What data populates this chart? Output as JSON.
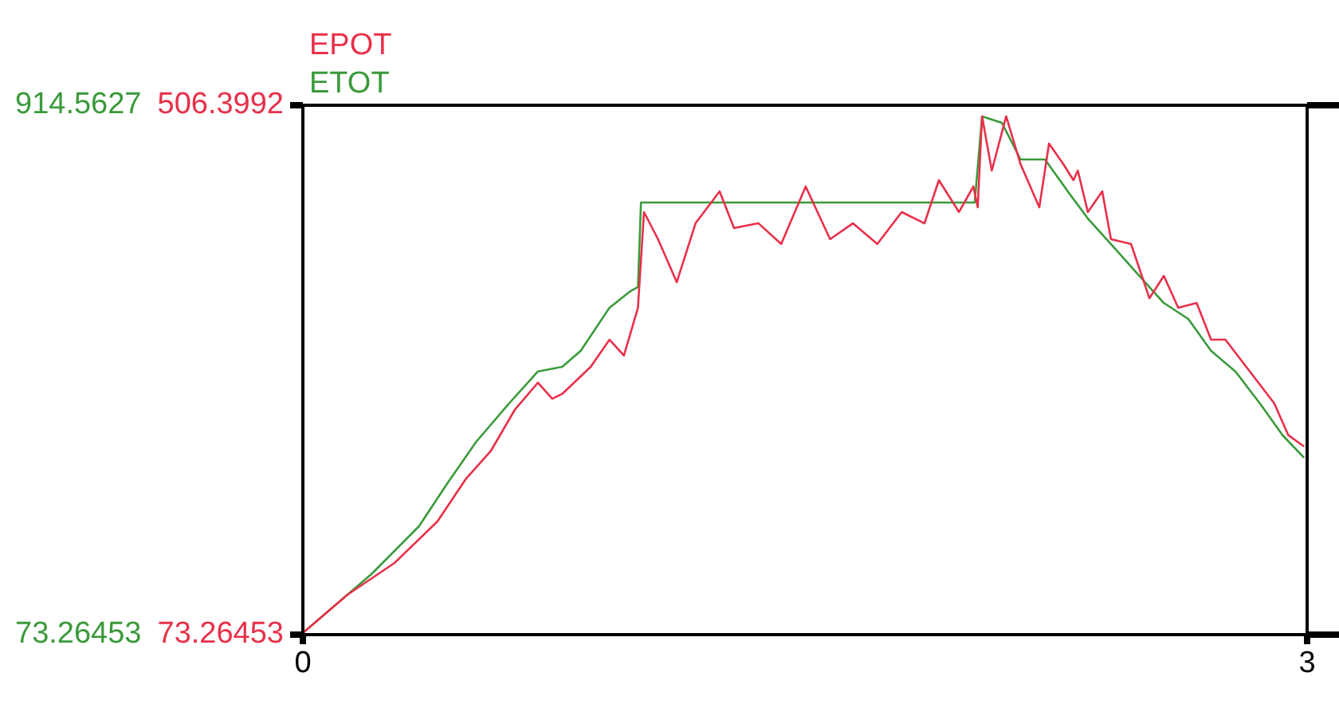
{
  "chart_data": {
    "type": "line",
    "xlim": [
      0,
      3
    ],
    "xticks": [
      0,
      3
    ],
    "ylim": [
      73.26453,
      506.3992
    ],
    "yticks": [
      73.26453,
      506.3992
    ],
    "y2lim": [
      73.26453,
      914.5627
    ],
    "y2ticks": [
      73.26453,
      914.5627
    ],
    "legend": "top left",
    "marker": "none",
    "line_style": "solid",
    "series": [
      {
        "name": "EPOT",
        "color": "#e8304a",
        "axis": "y",
        "x": [
          0,
          0.133,
          0.274,
          0.402,
          0.488,
          0.561,
          0.633,
          0.702,
          0.745,
          0.775,
          0.86,
          0.916,
          0.959,
          1.001,
          1.019,
          1.061,
          1.117,
          1.173,
          1.245,
          1.288,
          1.361,
          1.429,
          1.502,
          1.575,
          1.643,
          1.716,
          1.789,
          1.857,
          1.9,
          1.96,
          2.003,
          2.016,
          2.029,
          2.058,
          2.101,
          2.144,
          2.2,
          2.229,
          2.272,
          2.302,
          2.315,
          2.345,
          2.388,
          2.414,
          2.474,
          2.529,
          2.572,
          2.615,
          2.67,
          2.713,
          2.756,
          2.829,
          2.902,
          2.944,
          2.991
        ],
        "values": [
          74.6,
          105.9,
          132.0,
          165.9,
          201.1,
          223.3,
          257.2,
          279.4,
          266.3,
          270.3,
          292.4,
          314.6,
          301.6,
          340.7,
          419.0,
          396.8,
          361.6,
          409.8,
          435.9,
          405.9,
          409.8,
          392.9,
          439.9,
          396.8,
          409.8,
          392.9,
          419.0,
          409.8,
          445.1,
          419.0,
          439.9,
          422.9,
          497.3,
          452.9,
          497.3,
          458.1,
          422.9,
          475.1,
          458.1,
          445.1,
          452.9,
          419.0,
          435.9,
          396.8,
          392.9,
          348.5,
          366.8,
          340.7,
          344.6,
          314.6,
          314.6,
          288.5,
          262.4,
          236.4,
          227.2
        ]
      },
      {
        "name": "ETOT",
        "color": "#3a9a3a",
        "axis": "y2",
        "x": [
          0,
          0.205,
          0.347,
          0.432,
          0.518,
          0.616,
          0.702,
          0.775,
          0.83,
          0.916,
          0.976,
          1.001,
          1.01,
          2.007,
          2.029,
          2.088,
          2.144,
          2.217,
          2.285,
          2.345,
          2.414,
          2.499,
          2.572,
          2.645,
          2.713,
          2.786,
          2.859,
          2.927,
          2.991
        ],
        "values": [
          76,
          169.6,
          245.6,
          314.0,
          379.9,
          440.7,
          491.4,
          499.0,
          524.3,
          592.8,
          618.1,
          625.7,
          760.0,
          760.0,
          896.8,
          886.7,
          828.4,
          828.4,
          777.7,
          734.6,
          694.1,
          643.4,
          600.3,
          575.0,
          524.3,
          491.4,
          440.7,
          390.0,
          354.5
        ]
      }
    ]
  }
}
